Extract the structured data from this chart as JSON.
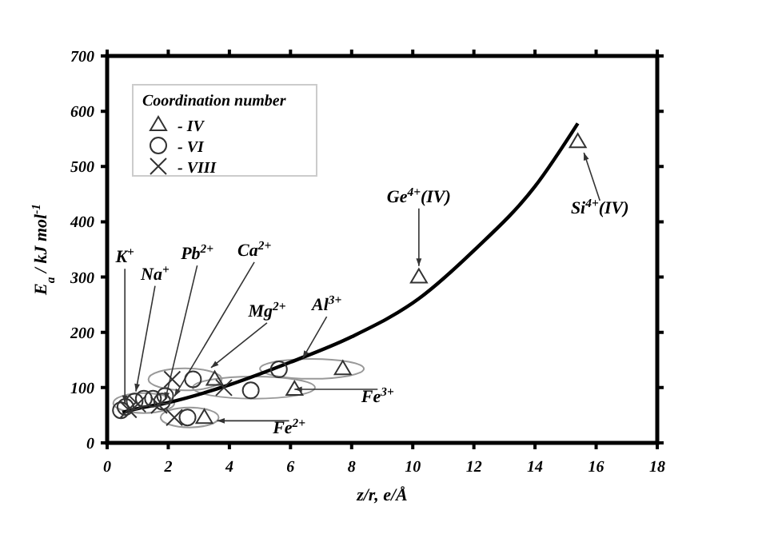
{
  "chart_data": {
    "type": "scatter",
    "xlabel": "z/r, e/Å",
    "ylabel": "E$_{a}$ / kJ mol$^{-1}$",
    "legend_title": "Coordination number",
    "legend": "top left",
    "grid": false,
    "xlim": [
      0,
      18
    ],
    "xticks": [
      0,
      2,
      4,
      6,
      8,
      10,
      12,
      14,
      16,
      18
    ],
    "ylim": [
      0,
      700
    ],
    "yticks": [
      0,
      100,
      200,
      300,
      400,
      500,
      600,
      700
    ],
    "series": [
      {
        "type": "line",
        "color": "#000000",
        "line_style": "solid",
        "x": [
          0.5,
          1,
          2,
          4,
          6,
          8,
          10.2,
          12,
          14,
          15.4
        ],
        "values": [
          55,
          62,
          73,
          105,
          146,
          192,
          261,
          348,
          464,
          578
        ]
      },
      {
        "name": "- IV",
        "marker": "triangle",
        "color": "#333333",
        "x": [
          3.52,
          6.13,
          7.71,
          3.18,
          10.2,
          15.4
        ],
        "values": [
          115,
          97,
          134,
          46,
          300,
          545
        ]
      },
      {
        "name": "- VI",
        "marker": "circle",
        "color": "#333333",
        "x": [
          2.81,
          4.7,
          5.62,
          2.63,
          0.45,
          0.6,
          0.9,
          1.2,
          1.5,
          1.8,
          1.9
        ],
        "values": [
          115,
          95,
          133,
          46,
          59,
          65,
          75,
          80,
          80,
          75,
          85
        ]
      },
      {
        "name": "- VIII",
        "marker": "cross",
        "color": "#333333",
        "x": [
          2.13,
          3.82,
          2.2,
          0.7,
          1.0,
          1.7
        ],
        "values": [
          115,
          100,
          46,
          60,
          70,
          68
        ]
      }
    ],
    "annotations": [
      {
        "text": "K$^{+}$",
        "x": 0.58,
        "y": 72
      },
      {
        "text": "Na$^{+}$",
        "x": 0.94,
        "y": 93
      },
      {
        "text": "Pb$^{2+}$",
        "x": 1.9,
        "y": 78
      },
      {
        "text": "Ca$^{2+}$",
        "x": 2.2,
        "y": 84
      },
      {
        "text": "Mg$^{2+}$",
        "x": 3.4,
        "y": 136
      },
      {
        "text": "Al$^{3+}$",
        "x": 6.4,
        "y": 153
      },
      {
        "text": "Fe$^{3+}$",
        "x": 6.13,
        "y": 97
      },
      {
        "text": "Fe$^{2+}$",
        "x": 3.6,
        "y": 40
      },
      {
        "text": "Ge$^{4+}$(IV)",
        "x": 10.2,
        "y": 320
      },
      {
        "text": "Si$^{4+}$(IV)",
        "x": 15.6,
        "y": 525
      }
    ]
  }
}
